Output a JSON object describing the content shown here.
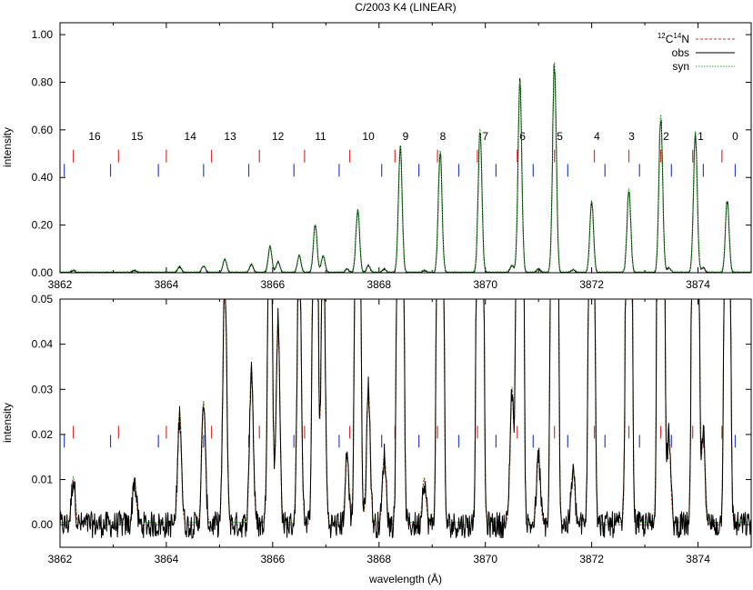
{
  "chart_data": [
    {
      "type": "line",
      "title": "C/2003 K4 (LINEAR)",
      "ylabel": "intensity",
      "xlabel": "",
      "xlim": [
        3862,
        3875
      ],
      "ylim": [
        0,
        1.05
      ],
      "x_ticks": [
        "3862",
        "3864",
        "3866",
        "3868",
        "3870",
        "3872",
        "3874"
      ],
      "y_ticks": [
        "0.00",
        "0.20",
        "0.40",
        "0.60",
        "0.80",
        "1.00"
      ],
      "legend": {
        "placement": "top-right",
        "entries": [
          {
            "name": "12C14N",
            "iso_a": "12",
            "el_a": "C",
            "iso_b": "14",
            "el_b": "N",
            "style": "dashed",
            "color": "#cc3333"
          },
          {
            "name": "obs",
            "style": "solid",
            "color": "#000000"
          },
          {
            "name": "syn",
            "style": "dotted",
            "color": "#22aa22"
          }
        ]
      },
      "band_labels": [
        {
          "label": "16",
          "x": 3862.65
        },
        {
          "label": "15",
          "x": 3863.45
        },
        {
          "label": "14",
          "x": 3864.45
        },
        {
          "label": "13",
          "x": 3865.2
        },
        {
          "label": "12",
          "x": 3866.1
        },
        {
          "label": "11",
          "x": 3866.9
        },
        {
          "label": "10",
          "x": 3867.8
        },
        {
          "label": "9",
          "x": 3868.5
        },
        {
          "label": "8",
          "x": 3869.2
        },
        {
          "label": "7",
          "x": 3870.0
        },
        {
          "label": "6",
          "x": 3870.7
        },
        {
          "label": "5",
          "x": 3871.4
        },
        {
          "label": "4",
          "x": 3872.1
        },
        {
          "label": "3",
          "x": 3872.75
        },
        {
          "label": "2",
          "x": 3873.4
        },
        {
          "label": "1",
          "x": 3874.05
        },
        {
          "label": "0",
          "x": 3874.7
        }
      ],
      "red_ticks": [
        3862.25,
        3863.1,
        3864.0,
        3864.85,
        3865.75,
        3866.6,
        3867.45,
        3868.3,
        3869.1,
        3869.85,
        3870.6,
        3871.3,
        3872.05,
        3872.7,
        3873.3,
        3873.9,
        3874.45
      ],
      "blue_ticks": [
        3862.08,
        3862.95,
        3863.85,
        3864.7,
        3865.55,
        3866.4,
        3867.25,
        3868.05,
        3868.75,
        3869.5,
        3870.2,
        3870.9,
        3871.55,
        3872.25,
        3872.9,
        3873.5,
        3874.1,
        3874.7
      ],
      "tick_levels": {
        "red": 0.49,
        "blue": 0.43
      },
      "peaks": [
        [
          3862.25,
          0.01
        ],
        [
          3863.4,
          0.01
        ],
        [
          3864.25,
          0.025
        ],
        [
          3864.7,
          0.027
        ],
        [
          3865.1,
          0.055
        ],
        [
          3865.6,
          0.035
        ],
        [
          3865.95,
          0.11
        ],
        [
          3866.1,
          0.045
        ],
        [
          3866.5,
          0.07
        ],
        [
          3866.8,
          0.2
        ],
        [
          3866.95,
          0.07
        ],
        [
          3867.4,
          0.015
        ],
        [
          3867.6,
          0.26
        ],
        [
          3867.8,
          0.03
        ],
        [
          3868.1,
          0.015
        ],
        [
          3868.4,
          0.53
        ],
        [
          3868.85,
          0.01
        ],
        [
          3869.15,
          0.51
        ],
        [
          3869.9,
          0.6
        ],
        [
          3870.5,
          0.03
        ],
        [
          3870.65,
          0.8
        ],
        [
          3871.0,
          0.015
        ],
        [
          3871.3,
          0.88
        ],
        [
          3871.65,
          0.012
        ],
        [
          3872.0,
          0.3
        ],
        [
          3872.7,
          0.35
        ],
        [
          3873.3,
          0.66
        ],
        [
          3873.45,
          0.02
        ],
        [
          3873.95,
          0.59
        ],
        [
          3874.1,
          0.02
        ],
        [
          3874.55,
          0.3
        ]
      ]
    },
    {
      "type": "line",
      "title": "",
      "ylabel": "intensity",
      "xlabel": "wavelength (Å)",
      "xlim": [
        3862,
        3875
      ],
      "ylim": [
        -0.005,
        0.05
      ],
      "x_ticks": [
        "3862",
        "3864",
        "3866",
        "3868",
        "3870",
        "3872",
        "3874"
      ],
      "y_ticks": [
        "0.00",
        "0.01",
        "0.02",
        "0.03",
        "0.04",
        "0.05"
      ],
      "tick_levels": {
        "red": 0.0205,
        "blue": 0.0185
      },
      "noise_level": 0.003
    }
  ]
}
